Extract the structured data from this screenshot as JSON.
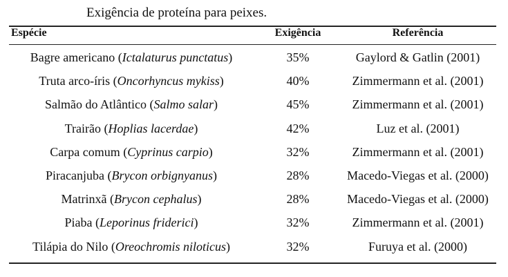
{
  "caption": "Exigência de proteína para peixes.",
  "columns": {
    "species": "Espécie",
    "requirement": "Exigência",
    "reference": "Referência"
  },
  "rows": [
    {
      "common": "Bagre americano",
      "scientific": "Ictalaturus punctatus",
      "requirement": "35%",
      "reference": "Gaylord & Gatlin (2001)"
    },
    {
      "common": "Truta arco-íris",
      "scientific": "Oncorhyncus mykiss",
      "requirement": "40%",
      "reference": "Zimmermann et al. (2001)"
    },
    {
      "common": "Salmão do Atlântico",
      "scientific": "Salmo salar",
      "requirement": "45%",
      "reference": "Zimmermann et al. (2001)"
    },
    {
      "common": "Trairão",
      "scientific": "Hoplias lacerdae",
      "requirement": "42%",
      "reference": "Luz et al. (2001)"
    },
    {
      "common": "Carpa comum",
      "scientific": "Cyprinus carpio",
      "requirement": "32%",
      "reference": "Zimmermann et al. (2001)"
    },
    {
      "common": "Piracanjuba",
      "scientific": "Brycon orbignyanus",
      "requirement": "28%",
      "reference": "Macedo-Viegas et al. (2000)"
    },
    {
      "common": "Matrinxã",
      "scientific": "Brycon cephalus",
      "requirement": "28%",
      "reference": "Macedo-Viegas et al. (2000)"
    },
    {
      "common": "Piaba",
      "scientific": "Leporinus friderici",
      "requirement": "32%",
      "reference": "Zimmermann et al. (2001)"
    },
    {
      "common": "Tilápia do Nilo",
      "scientific": "Oreochromis niloticus",
      "requirement": "32%",
      "reference": "Furuya et al.  (2000)"
    }
  ]
}
